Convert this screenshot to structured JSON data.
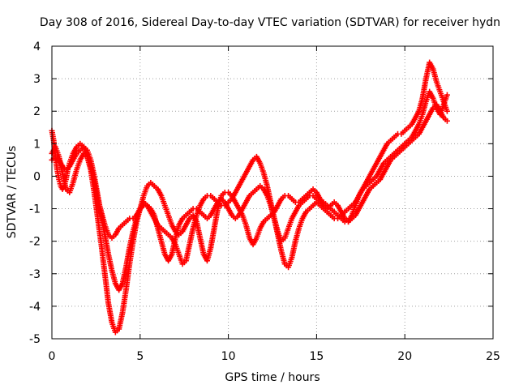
{
  "chart_data": {
    "type": "scatter",
    "title": "Day 308 of 2016, Sidereal Day-to-day VTEC variation (SDTVAR) for receiver hydn",
    "xlabel": "GPS time / hours",
    "ylabel": "SDTVAR / TECUs",
    "xlim": [
      0,
      25
    ],
    "ylim": [
      -5,
      4
    ],
    "xticks": [
      "0",
      "5",
      "10",
      "15",
      "20",
      "25"
    ],
    "yticks": [
      "-5",
      "-4",
      "-3",
      "-2",
      "-1",
      "0",
      "1",
      "2",
      "3",
      "4"
    ],
    "grid": true,
    "marker": "+",
    "color": "#ff0000",
    "series": [
      {
        "x": [
          0,
          0.1,
          0.2,
          0.3,
          0.4,
          0.5,
          0.6,
          0.7,
          0.8,
          0.9,
          1.0,
          1.2,
          1.4,
          1.6,
          1.8,
          2.0,
          2.2,
          2.4,
          2.6,
          2.8,
          3.0,
          3.2,
          3.4,
          3.6,
          3.8,
          4.0,
          4.2,
          4.4,
          4.6,
          4.8,
          5.0,
          5.2,
          5.4,
          5.6,
          5.8,
          6.0,
          6.2,
          6.4,
          6.6,
          6.8,
          7.0,
          7.2,
          7.4,
          7.6,
          7.8,
          8.0,
          8.2,
          8.4,
          8.6,
          8.8,
          9.0,
          9.2,
          9.4,
          9.6,
          9.8,
          10.0,
          10.2,
          10.4,
          10.6,
          10.8,
          11.0,
          11.2,
          11.4,
          11.6,
          11.8,
          12.0,
          12.2,
          12.4,
          12.6,
          12.8,
          13.0,
          13.2,
          13.4,
          13.6,
          13.8,
          14.0,
          14.2,
          14.4,
          14.6,
          14.8,
          15.0,
          15.2,
          15.4,
          15.6,
          15.8,
          16.0,
          16.2,
          16.4,
          16.6,
          16.8,
          17.0,
          17.2,
          17.4,
          17.6,
          17.8,
          18.0,
          18.2,
          18.4,
          18.6,
          18.8,
          19.0,
          19.2,
          19.4,
          19.6,
          19.8,
          20.0,
          20.2,
          20.4,
          20.6,
          20.8,
          21.0,
          21.2,
          21.4,
          21.6,
          21.8,
          22.0,
          22.2,
          22.4
        ],
        "y": [
          1.4,
          1.1,
          0.6,
          0.2,
          -0.1,
          -0.3,
          -0.4,
          -0.3,
          -0.1,
          0.2,
          0.4,
          0.7,
          0.9,
          1.0,
          0.9,
          0.6,
          0.2,
          -0.5,
          -1.3,
          -2.1,
          -3.0,
          -3.9,
          -4.5,
          -4.8,
          -4.7,
          -4.2,
          -3.5,
          -2.7,
          -2.0,
          -1.4,
          -1.0,
          -0.8,
          -0.9,
          -1.1,
          -1.3,
          -1.5,
          -1.6,
          -1.7,
          -1.8,
          -1.9,
          -2.1,
          -2.4,
          -2.7,
          -2.6,
          -2.1,
          -1.6,
          -1.2,
          -0.9,
          -0.7,
          -0.6,
          -0.6,
          -0.7,
          -0.8,
          -0.9,
          -0.9,
          -0.8,
          -0.7,
          -0.5,
          -0.3,
          -0.1,
          0.1,
          0.3,
          0.5,
          0.6,
          0.4,
          0.1,
          -0.3,
          -0.8,
          -1.3,
          -1.8,
          -2.3,
          -2.7,
          -2.8,
          -2.5,
          -2.0,
          -1.6,
          -1.3,
          -1.1,
          -1.0,
          -0.9,
          -0.8,
          -0.9,
          -1.0,
          -1.1,
          -1.2,
          -1.3,
          -1.3,
          -1.2,
          -1.1,
          -1.0,
          -0.9,
          -0.8,
          -0.6,
          -0.4,
          -0.2,
          0.0,
          0.2,
          0.4,
          0.6,
          0.8,
          1.0,
          1.1,
          1.2,
          1.3,
          1.3,
          1.4,
          1.5,
          1.6,
          1.8,
          2.0,
          2.4,
          3.0,
          3.5,
          3.3,
          2.9,
          2.6,
          2.3,
          2.0
        ]
      },
      {
        "x": [
          0,
          0.2,
          0.4,
          0.6,
          0.8,
          1.0,
          1.2,
          1.4,
          1.6,
          1.8,
          2.0,
          2.2,
          2.4,
          2.6,
          2.8,
          3.0,
          3.2,
          3.4,
          3.6,
          3.8,
          4.0,
          4.2,
          4.4,
          4.6,
          4.8,
          5.0,
          5.2,
          5.4,
          5.6,
          5.8,
          6.0,
          6.2,
          6.4,
          6.6,
          6.8,
          7.0,
          7.2,
          7.4,
          7.6,
          7.8,
          8.0,
          8.2,
          8.4,
          8.6,
          8.8,
          9.0,
          9.2,
          9.4,
          9.6,
          9.8,
          10.0,
          10.2,
          10.4,
          10.6,
          10.8,
          11.0,
          11.2,
          11.4,
          11.6,
          11.8,
          12.0,
          12.2,
          12.4,
          12.6,
          12.8,
          13.0,
          13.2,
          13.4,
          13.6,
          13.8,
          14.0,
          14.2,
          14.4,
          14.6,
          14.8,
          15.0,
          15.2,
          15.4,
          15.6,
          15.8,
          16.0,
          16.2,
          16.4,
          16.6,
          16.8,
          17.0,
          17.2,
          17.4,
          17.6,
          17.8,
          18.0,
          18.2,
          18.4,
          18.6,
          18.8,
          19.0,
          19.2,
          19.4,
          19.6,
          19.8,
          20.0,
          20.2,
          20.4,
          20.6,
          20.8,
          21.0,
          21.2,
          21.4,
          21.6,
          21.8,
          22.0,
          22.2,
          22.4
        ],
        "y": [
          0.5,
          0.6,
          0.5,
          0.3,
          0.2,
          0.3,
          0.5,
          0.7,
          0.8,
          0.9,
          0.8,
          0.5,
          0.0,
          -0.6,
          -1.2,
          -1.8,
          -2.4,
          -2.9,
          -3.3,
          -3.5,
          -3.3,
          -2.8,
          -2.2,
          -1.7,
          -1.3,
          -1.0,
          -0.9,
          -0.9,
          -1.0,
          -1.2,
          -1.6,
          -2.0,
          -2.4,
          -2.6,
          -2.4,
          -1.9,
          -1.5,
          -1.3,
          -1.2,
          -1.1,
          -1.0,
          -1.0,
          -1.1,
          -1.2,
          -1.3,
          -1.2,
          -1.0,
          -0.8,
          -0.7,
          -0.8,
          -1.0,
          -1.2,
          -1.3,
          -1.2,
          -1.0,
          -0.8,
          -0.6,
          -0.5,
          -0.4,
          -0.3,
          -0.4,
          -0.6,
          -0.9,
          -1.3,
          -1.7,
          -2.0,
          -1.9,
          -1.6,
          -1.3,
          -1.1,
          -0.9,
          -0.8,
          -0.7,
          -0.6,
          -0.6,
          -0.7,
          -0.8,
          -0.8,
          -0.9,
          -1.0,
          -1.1,
          -1.2,
          -1.3,
          -1.4,
          -1.4,
          -1.3,
          -1.2,
          -1.0,
          -0.8,
          -0.6,
          -0.4,
          -0.3,
          -0.2,
          -0.1,
          0.1,
          0.3,
          0.5,
          0.6,
          0.7,
          0.8,
          0.9,
          1.0,
          1.1,
          1.2,
          1.3,
          1.5,
          1.7,
          1.9,
          2.1,
          2.2,
          2.0,
          1.8,
          1.7
        ]
      },
      {
        "x": [
          0,
          0.2,
          0.4,
          0.6,
          0.8,
          1.0,
          1.2,
          1.4,
          1.6,
          1.8,
          2.0,
          2.2,
          2.4,
          2.6,
          2.8,
          3.0,
          3.2,
          3.4,
          3.6,
          3.8,
          4.0,
          4.2,
          4.4,
          4.6,
          4.8,
          5.0,
          5.2,
          5.4,
          5.6,
          5.8,
          6.0,
          6.2,
          6.4,
          6.6,
          6.8,
          7.0,
          7.2,
          7.4,
          7.6,
          7.8,
          8.0,
          8.2,
          8.4,
          8.6,
          8.8,
          9.0,
          9.2,
          9.4,
          9.6,
          9.8,
          10.0,
          10.2,
          10.4,
          10.6,
          10.8,
          11.0,
          11.2,
          11.4,
          11.6,
          11.8,
          12.0,
          12.2,
          12.4,
          12.6,
          12.8,
          13.0,
          13.2,
          13.4,
          13.6,
          13.8,
          14.0,
          14.2,
          14.4,
          14.6,
          14.8,
          15.0,
          15.2,
          15.4,
          15.6,
          15.8,
          16.0,
          16.2,
          16.4,
          16.6,
          16.8,
          17.0,
          17.2,
          17.4,
          17.6,
          17.8,
          18.0,
          18.2,
          18.4,
          18.6,
          18.8,
          19.0,
          19.2,
          19.4,
          19.6,
          19.8,
          20.0,
          20.2,
          20.4,
          20.6,
          20.8,
          21.0,
          21.2,
          21.4,
          21.6,
          21.8,
          22.0,
          22.2,
          22.4
        ],
        "y": [
          0.7,
          0.9,
          0.6,
          0.1,
          -0.4,
          -0.5,
          -0.2,
          0.2,
          0.5,
          0.7,
          0.6,
          0.3,
          -0.2,
          -0.7,
          -1.1,
          -1.5,
          -1.8,
          -1.9,
          -1.8,
          -1.6,
          -1.5,
          -1.4,
          -1.3,
          -1.3,
          -1.2,
          -1.0,
          -0.6,
          -0.3,
          -0.2,
          -0.3,
          -0.4,
          -0.6,
          -0.9,
          -1.2,
          -1.5,
          -1.7,
          -1.8,
          -1.7,
          -1.5,
          -1.3,
          -1.2,
          -1.4,
          -1.9,
          -2.4,
          -2.6,
          -2.2,
          -1.6,
          -1.0,
          -0.6,
          -0.5,
          -0.5,
          -0.6,
          -0.8,
          -1.0,
          -1.2,
          -1.5,
          -1.9,
          -2.1,
          -1.9,
          -1.6,
          -1.4,
          -1.3,
          -1.2,
          -1.1,
          -0.9,
          -0.7,
          -0.6,
          -0.6,
          -0.7,
          -0.8,
          -0.8,
          -0.7,
          -0.6,
          -0.5,
          -0.4,
          -0.5,
          -0.7,
          -0.9,
          -1.0,
          -0.9,
          -0.8,
          -0.9,
          -1.1,
          -1.3,
          -1.4,
          -1.2,
          -0.9,
          -0.6,
          -0.4,
          -0.3,
          -0.2,
          -0.1,
          0.0,
          0.2,
          0.4,
          0.5,
          0.6,
          0.7,
          0.8,
          0.9,
          1.0,
          1.1,
          1.2,
          1.4,
          1.6,
          1.9,
          2.3,
          2.6,
          2.4,
          2.1,
          1.9,
          2.2,
          2.5
        ]
      }
    ]
  }
}
